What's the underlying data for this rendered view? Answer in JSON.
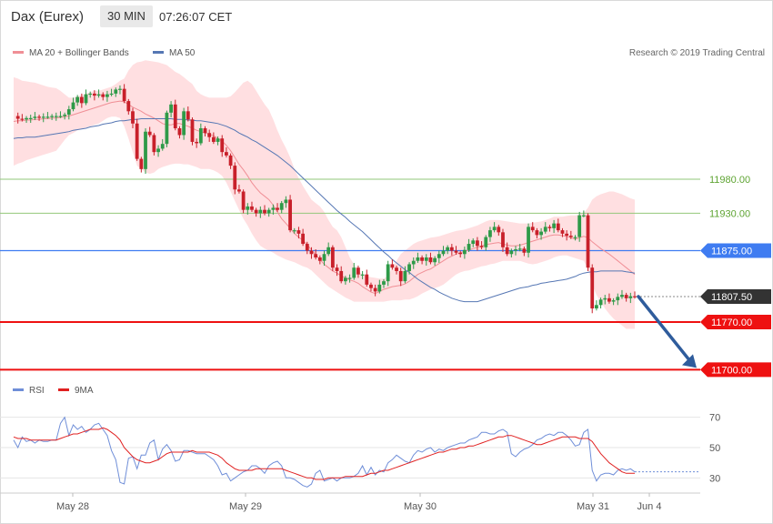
{
  "header": {
    "instrument": "Dax (Eurex)",
    "timeframe": "30 MIN",
    "time": "07:26:07 CET"
  },
  "legend": {
    "ma20_label": "MA 20 + Bollinger Bands",
    "ma50_label": "MA 50",
    "rsi_label": "RSI",
    "rsi_ma_label": "9MA"
  },
  "copyright": "Research © 2019 Trading Central",
  "colors": {
    "band_fill": "#ffd9dc",
    "ma20": "#f08f96",
    "ma50": "#5677b4",
    "bull": "#2e9a48",
    "bear": "#c8202a",
    "green_level": "#92c77a",
    "green_text": "#5ea432",
    "pivot": "#3f7cf1",
    "support": "#ee1111",
    "current": "#333333",
    "arrow": "#2f5c9c",
    "rsi": "#6f8ed8",
    "rsi_ma": "#e02020"
  },
  "chart_data": [
    {
      "type": "candlestick",
      "ylim": [
        11675,
        12150
      ],
      "x_tick_labels": [
        "May 28",
        "May 29",
        "May 30",
        "May 31",
        "Jun 4"
      ],
      "levels": [
        {
          "value": 11980,
          "label": "11980.00",
          "style": "resistance"
        },
        {
          "value": 11930,
          "label": "11930.00",
          "style": "resistance"
        },
        {
          "value": 11875,
          "label": "11875.00",
          "style": "pivot"
        },
        {
          "value": 11807.5,
          "label": "11807.50",
          "style": "current"
        },
        {
          "value": 11770,
          "label": "11770.00",
          "style": "support"
        },
        {
          "value": 11700,
          "label": "11700.00",
          "style": "support"
        }
      ],
      "forecast_arrow": {
        "from": 11807.5,
        "to": 11700,
        "direction": "down"
      },
      "close_path": [
        12073,
        12069,
        12068,
        12070,
        12070,
        12072,
        12071,
        12072,
        12072,
        12073,
        12073,
        12073,
        12075,
        12083,
        12093,
        12101,
        12092,
        12105,
        12106,
        12103,
        12105,
        12101,
        12105,
        12106,
        12112,
        12113,
        12095,
        12080,
        12062,
        12010,
        11995,
        12050,
        12045,
        12020,
        12025,
        12032,
        12078,
        12090,
        12055,
        12045,
        12080,
        12068,
        12035,
        12033,
        12055,
        12048,
        12042,
        12035,
        12040,
        12020,
        12015,
        12000,
        11965,
        11962,
        11935,
        11940,
        11935,
        11930,
        11935,
        11930,
        11935,
        11938,
        11935,
        11945,
        11950,
        11905,
        11905,
        11900,
        11885,
        11875,
        11870,
        11865,
        11860,
        11870,
        11880,
        11850,
        11845,
        11830,
        11835,
        11835,
        11850,
        11840,
        11840,
        11825,
        11820,
        11815,
        11825,
        11830,
        11855,
        11850,
        11845,
        11830,
        11845,
        11855,
        11860,
        11865,
        11860,
        11865,
        11858,
        11864,
        11870,
        11875,
        11880,
        11875,
        11872,
        11870,
        11876,
        11885,
        11890,
        11882,
        11880,
        11895,
        11905,
        11910,
        11902,
        11880,
        11870,
        11875,
        11877,
        11878,
        11872,
        11910,
        11905,
        11898,
        11903,
        11910,
        11908,
        11915,
        11905,
        11900,
        11897,
        11895,
        11895,
        11927,
        11927,
        11850,
        11790,
        11795,
        11803,
        11805,
        11800,
        11802,
        11807,
        11810,
        11805,
        11808,
        11807.5
      ],
      "ma20": [
        12065,
        12066,
        12066,
        12067,
        12067,
        12068,
        12068,
        12069,
        12069,
        12070,
        12070,
        12071,
        12072,
        12073,
        12075,
        12077,
        12079,
        12081,
        12083,
        12085,
        12087,
        12089,
        12091,
        12093,
        12094,
        12095,
        12094,
        12090,
        12086,
        12083,
        12080,
        12076,
        12073,
        12070,
        12066,
        12062,
        12060,
        12060,
        12062,
        12062,
        12060,
        12058,
        12055,
        12052,
        12050,
        12048,
        12046,
        12044,
        12040,
        12036,
        12030,
        12022,
        12012,
        12002,
        11994,
        11985,
        11975,
        11967,
        11960,
        11955,
        11950,
        11942,
        11932,
        11922,
        11915,
        11908,
        11900,
        11895,
        11890,
        11884,
        11876,
        11869,
        11862,
        11855,
        11850,
        11845,
        11842,
        11838,
        11835,
        11832,
        11830,
        11827,
        11822,
        11818,
        11814,
        11812,
        11815,
        11818,
        11820,
        11822,
        11823,
        11824,
        11826,
        11830,
        11835,
        11840,
        11843,
        11846,
        11848,
        11852,
        11856,
        11860,
        11864,
        11867,
        11870,
        11872,
        11874,
        11876,
        11878,
        11880,
        11882,
        11884,
        11885,
        11886,
        11887,
        11885,
        11883,
        11882,
        11882,
        11883,
        11885,
        11887,
        11889,
        11891,
        11893,
        11895,
        11897,
        11898,
        11898,
        11897,
        11896,
        11894,
        11892,
        11894,
        11896,
        11894,
        11888,
        11883,
        11878,
        11874,
        11870,
        11865,
        11860,
        11855,
        11850,
        11845,
        11840
      ],
      "bb_upper": [
        12130,
        12128,
        12125,
        12124,
        12123,
        12122,
        12120,
        12118,
        12116,
        12115,
        12114,
        12110,
        12105,
        12100,
        12100,
        12102,
        12104,
        12106,
        12108,
        12110,
        12110,
        12112,
        12114,
        12116,
        12120,
        12125,
        12128,
        12140,
        12148,
        12152,
        12153,
        12155,
        12154,
        12153,
        12152,
        12150,
        12148,
        12143,
        12138,
        12135,
        12130,
        12125,
        12120,
        12110,
        12105,
        12102,
        12100,
        12100,
        12100,
        12100,
        12100,
        12102,
        12108,
        12115,
        12122,
        12125,
        12120,
        12110,
        12100,
        12090,
        12082,
        12068,
        12052,
        12038,
        12026,
        12012,
        11995,
        11982,
        11970,
        11960,
        11950,
        11945,
        11940,
        11932,
        11920,
        11910,
        11905,
        11895,
        11880,
        11865,
        11855,
        11845,
        11840,
        11838,
        11836,
        11835,
        11834,
        11834,
        11838,
        11850,
        11860,
        11870,
        11875,
        11880,
        11885,
        11888,
        11890,
        11892,
        11894,
        11895,
        11896,
        11898,
        11900,
        11902,
        11904,
        11905,
        11906,
        11908,
        11910,
        11912,
        11915,
        11918,
        11920,
        11920,
        11920,
        11919,
        11918,
        11917,
        11916,
        11915,
        11915,
        11915,
        11916,
        11917,
        11918,
        11920,
        11922,
        11925,
        11925,
        11925,
        11926,
        11927,
        11927,
        11928,
        11930,
        11938,
        11950,
        11955,
        11958,
        11960,
        11962,
        11962,
        11960,
        11958,
        11955,
        11952,
        11950
      ],
      "bb_lower": [
        12000,
        12003,
        12005,
        12008,
        12010,
        12012,
        12014,
        12016,
        12018,
        12020,
        12022,
        12030,
        12038,
        12045,
        12048,
        12052,
        12054,
        12056,
        12058,
        12060,
        12062,
        12066,
        12070,
        12072,
        12072,
        12070,
        12058,
        12040,
        12020,
        12000,
        11995,
        11990,
        11988,
        11990,
        11995,
        11998,
        12000,
        12002,
        12003,
        12003,
        12002,
        12002,
        12000,
        11998,
        11995,
        11995,
        11995,
        11993,
        11990,
        11985,
        11975,
        11962,
        11948,
        11935,
        11922,
        11912,
        11900,
        11890,
        11882,
        11878,
        11875,
        11872,
        11868,
        11865,
        11862,
        11860,
        11858,
        11855,
        11852,
        11850,
        11846,
        11840,
        11834,
        11828,
        11822,
        11818,
        11814,
        11810,
        11806,
        11803,
        11800,
        11800,
        11800,
        11800,
        11800,
        11800,
        11800,
        11800,
        11801,
        11802,
        11802,
        11802,
        11803,
        11803,
        11805,
        11808,
        11812,
        11815,
        11818,
        11820,
        11822,
        11825,
        11830,
        11835,
        11840,
        11843,
        11845,
        11846,
        11848,
        11850,
        11852,
        11853,
        11855,
        11856,
        11858,
        11860,
        11860,
        11860,
        11860,
        11860,
        11858,
        11856,
        11855,
        11856,
        11858,
        11860,
        11862,
        11865,
        11867,
        11868,
        11868,
        11866,
        11864,
        11862,
        11860,
        11848,
        11825,
        11810,
        11800,
        11790,
        11782,
        11775,
        11770,
        11765,
        11760,
        11760,
        11760
      ],
      "ma50": [
        12040,
        12041,
        12041,
        12042,
        12042,
        12042,
        12043,
        12044,
        12045,
        12046,
        12047,
        12048,
        12049,
        12050,
        12052,
        12053,
        12054,
        12055,
        12057,
        12058,
        12059,
        12061,
        12062,
        12063,
        12065,
        12066,
        12066,
        12067,
        12068,
        12068,
        12069,
        12069,
        12069,
        12069,
        12069,
        12069,
        12069,
        12069,
        12068,
        12068,
        12068,
        12067,
        12067,
        12066,
        12066,
        12065,
        12064,
        12063,
        12062,
        12060,
        12058,
        12055,
        12052,
        12048,
        12045,
        12042,
        12038,
        12035,
        12031,
        12027,
        12023,
        12019,
        12015,
        12010,
        12005,
        12000,
        11994,
        11988,
        11982,
        11976,
        11970,
        11964,
        11958,
        11952,
        11946,
        11940,
        11934,
        11929,
        11924,
        11918,
        11913,
        11908,
        11903,
        11897,
        11891,
        11885,
        11879,
        11873,
        11868,
        11862,
        11857,
        11852,
        11847,
        11843,
        11838,
        11833,
        11829,
        11825,
        11821,
        11818,
        11814,
        11811,
        11808,
        11805,
        11803,
        11801,
        11800,
        11800,
        11800,
        11800,
        11802,
        11804,
        11806,
        11808,
        11810,
        11812,
        11814,
        11816,
        11818,
        11820,
        11821,
        11822,
        11824,
        11825,
        11827,
        11828,
        11829,
        11830,
        11831,
        11832,
        11833,
        11835,
        11837,
        11840,
        11842,
        11843,
        11844,
        11844,
        11845,
        11845,
        11845,
        11845,
        11845,
        11845,
        11844,
        11843,
        11842
      ]
    },
    {
      "type": "line",
      "name": "RSI",
      "ylim": [
        20,
        80
      ],
      "y_ticks": [
        30,
        50,
        70
      ],
      "rsi": [
        55,
        50,
        57,
        54,
        55,
        53,
        55,
        54,
        54,
        55,
        55,
        66,
        70,
        58,
        65,
        62,
        64,
        60,
        62,
        65,
        66,
        62,
        58,
        48,
        42,
        27,
        26,
        43,
        44,
        36,
        45,
        45,
        53,
        55,
        42,
        49,
        52,
        48,
        41,
        42,
        48,
        48,
        47,
        46,
        46,
        46,
        44,
        42,
        38,
        32,
        33,
        28,
        30,
        32,
        34,
        35,
        38,
        38,
        36,
        33,
        38,
        40,
        41,
        38,
        30,
        30,
        29,
        27,
        25,
        24,
        26,
        33,
        35,
        28,
        29,
        30,
        28,
        30,
        30,
        30,
        31,
        33,
        38,
        32,
        37,
        32,
        35,
        34,
        40,
        42,
        45,
        43,
        41,
        40,
        45,
        48,
        47,
        49,
        50,
        47,
        49,
        48,
        50,
        51,
        52,
        53,
        53,
        55,
        56,
        57,
        60,
        60,
        59,
        59,
        61,
        62,
        60,
        46,
        44,
        47,
        49,
        50,
        52,
        55,
        56,
        58,
        59,
        58,
        60,
        60,
        58,
        55,
        51,
        52,
        60,
        62,
        35,
        28,
        32,
        33,
        33,
        32,
        35,
        36,
        35,
        36,
        34
      ],
      "rsi_ma": [
        57,
        56,
        56,
        56,
        55,
        55,
        55,
        55,
        55,
        55,
        55,
        56,
        57,
        58,
        59,
        59,
        60,
        61,
        62,
        62,
        62,
        63,
        62,
        60,
        58,
        55,
        50,
        47,
        44,
        42,
        41,
        40,
        40,
        41,
        42,
        44,
        46,
        47,
        47,
        47,
        47,
        47,
        48,
        47,
        47,
        47,
        47,
        46,
        45,
        43,
        40,
        38,
        36,
        35,
        35,
        35,
        35,
        36,
        36,
        36,
        36,
        36,
        36,
        36,
        35,
        34,
        33,
        32,
        31,
        30,
        30,
        29,
        29,
        29,
        30,
        30,
        30,
        30,
        31,
        31,
        31,
        31,
        31,
        32,
        33,
        33,
        34,
        35,
        35,
        36,
        37,
        38,
        39,
        40,
        41,
        42,
        43,
        44,
        45,
        46,
        47,
        47,
        48,
        49,
        49,
        50,
        50,
        51,
        51,
        52,
        53,
        54,
        55,
        56,
        57,
        57,
        58,
        58,
        57,
        56,
        55,
        54,
        53,
        52,
        52,
        53,
        54,
        55,
        56,
        57,
        57,
        57,
        57,
        56,
        56,
        56,
        54,
        50,
        46,
        43,
        40,
        38,
        36,
        34,
        33,
        33,
        33
      ]
    }
  ]
}
